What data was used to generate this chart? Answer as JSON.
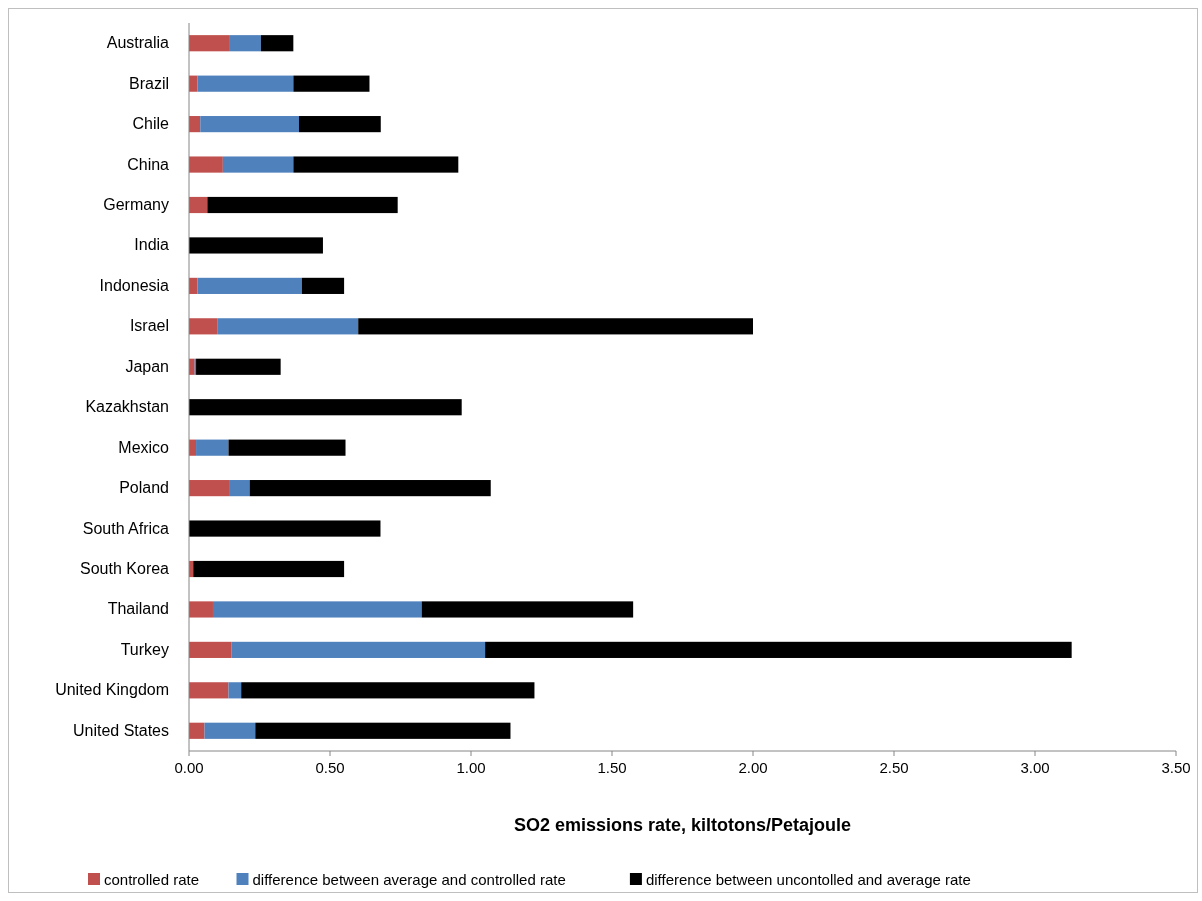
{
  "chart_data": {
    "type": "bar",
    "orientation": "horizontal",
    "stacked": true,
    "xlabel": "SO2 emissions rate, kiltotons/Petajoule",
    "categories": [
      "Australia",
      "Brazil",
      "Chile",
      "China",
      "Germany",
      "India",
      "Indonesia",
      "Israel",
      "Japan",
      "Kazakhstan",
      "Mexico",
      "Poland",
      "South Africa",
      "South Korea",
      "Thailand",
      "Turkey",
      "United Kingdom",
      "United States"
    ],
    "series": [
      {
        "name": "controlled rate",
        "color": "#c0504d",
        "values": [
          0.145,
          0.03,
          0.04,
          0.12,
          0.065,
          0,
          0.03,
          0.1,
          0.02,
          0,
          0.025,
          0.145,
          0,
          0.015,
          0.085,
          0.15,
          0.14,
          0.055
        ]
      },
      {
        "name": "difference between average and controlled rate",
        "color": "#4f81bd",
        "values": [
          0.11,
          0.34,
          0.35,
          0.25,
          0,
          0,
          0.37,
          0.5,
          0.005,
          0,
          0.115,
          0.07,
          0,
          0,
          0.74,
          0.9,
          0.045,
          0.18
        ]
      },
      {
        "name": "difference between uncontolled and average rate",
        "color": "#000000",
        "values": [
          0.115,
          0.27,
          0.29,
          0.585,
          0.675,
          0.475,
          0.15,
          1.4,
          0.3,
          0.967,
          0.415,
          0.855,
          0.679,
          0.535,
          0.75,
          2.08,
          1.04,
          0.905
        ]
      }
    ],
    "xlim": [
      0,
      3.5
    ],
    "xticks": [
      {
        "value": 0,
        "label": "0.00"
      },
      {
        "value": 0.5,
        "label": "0.50"
      },
      {
        "value": 1,
        "label": "1.00"
      },
      {
        "value": 1.5,
        "label": "1.50"
      },
      {
        "value": 2,
        "label": "2.00"
      },
      {
        "value": 2.5,
        "label": "2.50"
      },
      {
        "value": 3,
        "label": "3.00"
      },
      {
        "value": 3.5,
        "label": "3.50"
      }
    ],
    "grid": false,
    "legend": "bottom"
  }
}
